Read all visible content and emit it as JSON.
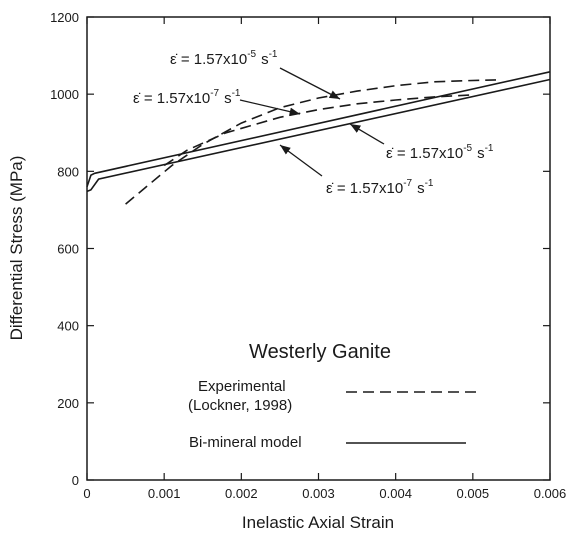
{
  "chart_data": {
    "type": "line",
    "title": "Westerly Ganite",
    "xlabel": "Inelastic Axial Strain",
    "ylabel": "Differential Stress (MPa)",
    "xlim": [
      0,
      0.006
    ],
    "ylim": [
      0,
      1200
    ],
    "x_ticks": [
      "0",
      "0.001",
      "0.002",
      "0.003",
      "0.004",
      "0.005",
      "0.006"
    ],
    "y_ticks": [
      "0",
      "200",
      "400",
      "600",
      "800",
      "1000",
      "1200"
    ],
    "grid": false,
    "series": [
      {
        "name": "Experimental (Lockner, 1998)",
        "rate": "1.57x10-5 s-1",
        "style": "dashed",
        "x": [
          0.0005,
          0.0008,
          0.0011,
          0.0015,
          0.002,
          0.0025,
          0.003,
          0.0035,
          0.004,
          0.0045,
          0.0049,
          0.0053
        ],
        "y": [
          715,
          765,
          815,
          870,
          925,
          965,
          990,
          1008,
          1022,
          1032,
          1035,
          1037
        ]
      },
      {
        "name": "Experimental (Lockner, 1998)",
        "rate": "1.57x10-7 s-1",
        "style": "dashed",
        "x": [
          0.001,
          0.0013,
          0.0018,
          0.0025,
          0.003,
          0.0035,
          0.004,
          0.0045,
          0.005
        ],
        "y": [
          815,
          855,
          900,
          940,
          960,
          975,
          985,
          993,
          998
        ]
      },
      {
        "name": "Bi-mineral model",
        "rate": "1.57x10-5 s-1",
        "style": "solid",
        "x": [
          0,
          5e-05,
          0.0001,
          0.006
        ],
        "y": [
          760,
          790,
          795,
          1058
        ]
      },
      {
        "name": "Bi-mineral model",
        "rate": "1.57x10-7 s-1",
        "style": "solid",
        "x": [
          0,
          5e-05,
          0.00015,
          0.006
        ],
        "y": [
          748,
          752,
          780,
          1038
        ]
      }
    ],
    "annotations": [
      {
        "base": "1.57x10",
        "exp": "-5",
        "unit": "s",
        "unit_exp": "-1"
      },
      {
        "base": "1.57x10",
        "exp": "-7",
        "unit": "s",
        "unit_exp": "-1"
      },
      {
        "base": "1.57x10",
        "exp": "-5",
        "unit": "s",
        "unit_exp": "-1"
      },
      {
        "base": "1.57x10",
        "exp": "-7",
        "unit": "s",
        "unit_exp": "-1"
      }
    ],
    "legend": [
      {
        "label_line1": "Experimental",
        "label_line2": "(Lockner, 1998)",
        "style": "dashed"
      },
      {
        "label_line1": "Bi-mineral model",
        "style": "solid"
      }
    ]
  }
}
